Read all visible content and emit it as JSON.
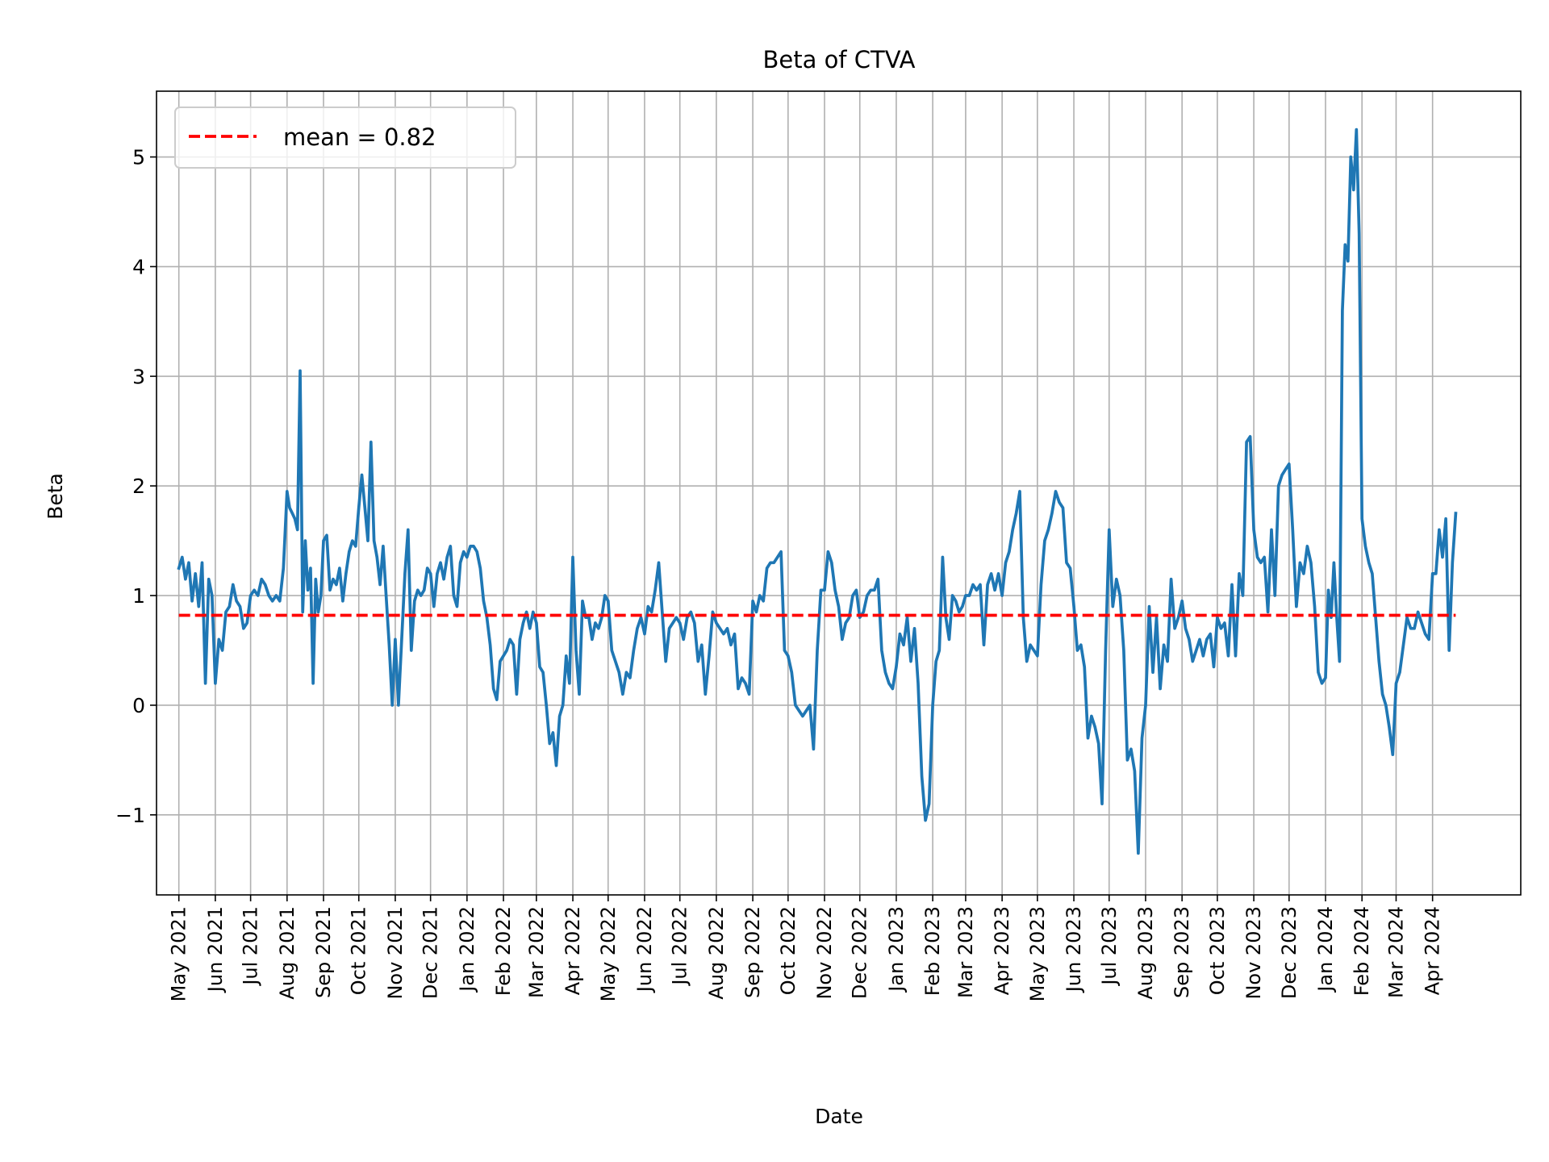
{
  "chart_data": {
    "type": "line",
    "title": "Beta of CTVA",
    "xlabel": "Date",
    "ylabel": "Beta",
    "xlim": [
      "2021-04-12",
      "2024-06-15"
    ],
    "ylim": [
      -1.73,
      5.6
    ],
    "grid": true,
    "legend_position": "top-left",
    "y_ticks": [
      "−1",
      "0",
      "1",
      "2",
      "3",
      "4",
      "5"
    ],
    "y_tick_values": [
      -1,
      0,
      1,
      2,
      3,
      4,
      5
    ],
    "x_ticks": [
      "May 2021",
      "Jun 2021",
      "Jul 2021",
      "Aug 2021",
      "Sep 2021",
      "Oct 2021",
      "Nov 2021",
      "Dec 2021",
      "Jan 2022",
      "Feb 2022",
      "Mar 2022",
      "Apr 2022",
      "May 2022",
      "Jun 2022",
      "Jul 2022",
      "Aug 2022",
      "Sep 2022",
      "Oct 2022",
      "Nov 2022",
      "Dec 2022",
      "Jan 2023",
      "Feb 2023",
      "Mar 2023",
      "Apr 2023",
      "May 2023",
      "Jun 2023",
      "Jul 2023",
      "Aug 2023",
      "Sep 2023",
      "Oct 2023",
      "Nov 2023",
      "Dec 2023",
      "Jan 2024",
      "Feb 2024",
      "Mar 2024",
      "Apr 2024"
    ],
    "x_tick_dates": [
      "2021-05-01",
      "2021-06-01",
      "2021-07-01",
      "2021-08-01",
      "2021-09-01",
      "2021-10-01",
      "2021-11-01",
      "2021-12-01",
      "2022-01-01",
      "2022-02-01",
      "2022-03-01",
      "2022-04-01",
      "2022-05-01",
      "2022-06-01",
      "2022-07-01",
      "2022-08-01",
      "2022-09-01",
      "2022-10-01",
      "2022-11-01",
      "2022-12-01",
      "2023-01-01",
      "2023-02-01",
      "2023-03-01",
      "2023-04-01",
      "2023-05-01",
      "2023-06-01",
      "2023-07-01",
      "2023-08-01",
      "2023-09-01",
      "2023-10-01",
      "2023-11-01",
      "2023-12-01",
      "2024-01-01",
      "2024-02-01",
      "2024-03-01",
      "2024-04-01"
    ],
    "series": [
      {
        "color": "#1f77b4",
        "values_by_month": {
          "2021-05": [
            1.25,
            1.35,
            1.15,
            1.3,
            0.95,
            1.2,
            0.9,
            1.3,
            0.2,
            1.15,
            1.0
          ],
          "2021-06": [
            0.2,
            0.6,
            0.5,
            0.85,
            0.9,
            1.1,
            0.95,
            0.9,
            0.7,
            0.75
          ],
          "2021-07": [
            1.0,
            1.05,
            1.0,
            1.15,
            1.1,
            1.0,
            0.95,
            1.0,
            0.95,
            1.25
          ],
          "2021-08": [
            1.95,
            1.8,
            1.75,
            1.7,
            1.6,
            3.05,
            0.85,
            1.5,
            1.05,
            1.25,
            0.2,
            1.15,
            0.85,
            1.0
          ],
          "2021-09": [
            1.5,
            1.55,
            1.05,
            1.15,
            1.1,
            1.25,
            0.95,
            1.2,
            1.4,
            1.5,
            1.45
          ],
          "2021-10": [
            1.8,
            2.1,
            1.8,
            1.5,
            2.4,
            1.5,
            1.35,
            1.1,
            1.45,
            1.0,
            0.55,
            0.0
          ],
          "2021-11": [
            0.6,
            0.0,
            0.6,
            1.2,
            1.6,
            0.5,
            0.95,
            1.05,
            1.0,
            1.05,
            1.25
          ],
          "2021-12": [
            1.2,
            0.9,
            1.2,
            1.3,
            1.15,
            1.35,
            1.45,
            1.0,
            0.9,
            1.3,
            1.4
          ],
          "2022-01": [
            1.35,
            1.45,
            1.45,
            1.4,
            1.25,
            0.95,
            0.8,
            0.55,
            0.15,
            0.05,
            0.4
          ],
          "2022-02": [
            0.45,
            0.5,
            0.6,
            0.55,
            0.1,
            0.6,
            0.75,
            0.85,
            0.7,
            0.85
          ],
          "2022-03": [
            0.75,
            0.35,
            0.3,
            0.0,
            -0.35,
            -0.25,
            -0.55,
            -0.1,
            0.0,
            0.45,
            0.2
          ],
          "2022-04": [
            1.35,
            0.5,
            0.1,
            0.95,
            0.8,
            0.8,
            0.6,
            0.75,
            0.7,
            0.8,
            1.0
          ],
          "2022-05": [
            0.95,
            0.5,
            0.4,
            0.3,
            0.1,
            0.3,
            0.25,
            0.5,
            0.7,
            0.8
          ],
          "2022-06": [
            0.65,
            0.9,
            0.85,
            1.05,
            1.3,
            0.85,
            0.4,
            0.7,
            0.75,
            0.8
          ],
          "2022-07": [
            0.75,
            0.6,
            0.8,
            0.85,
            0.75,
            0.4,
            0.55,
            0.1,
            0.45,
            0.85
          ],
          "2022-08": [
            0.75,
            0.7,
            0.65,
            0.7,
            0.55,
            0.65,
            0.15,
            0.25,
            0.2,
            0.1
          ],
          "2022-09": [
            0.95,
            0.85,
            1.0,
            0.95,
            1.25,
            1.3,
            1.3,
            1.35,
            1.4,
            0.5
          ],
          "2022-10": [
            0.45,
            0.3,
            0.0,
            -0.05,
            -0.1,
            -0.05,
            0.0,
            -0.4,
            0.5,
            1.05
          ],
          "2022-11": [
            1.05,
            1.4,
            1.3,
            1.05,
            0.9,
            0.6,
            0.75,
            0.8,
            1.0,
            1.05
          ],
          "2022-12": [
            0.8,
            0.85,
            1.0,
            1.05,
            1.05,
            1.15,
            0.5,
            0.3,
            0.2,
            0.15
          ],
          "2023-01": [
            0.35,
            0.65,
            0.55,
            0.8,
            0.4,
            0.7,
            0.2,
            -0.65,
            -1.05,
            -0.9
          ],
          "2023-02": [
            0.0,
            0.4,
            0.5,
            1.35,
            0.8,
            0.6,
            1.0,
            0.95,
            0.85,
            0.9
          ],
          "2023-03": [
            1.0,
            1.0,
            1.1,
            1.05,
            1.1,
            0.55,
            1.1,
            1.2,
            1.05,
            1.2
          ],
          "2023-04": [
            1.0,
            1.3,
            1.4,
            1.6,
            1.75,
            1.95,
            0.8,
            0.4,
            0.55,
            0.5
          ],
          "2023-05": [
            0.45,
            1.1,
            1.5,
            1.6,
            1.75,
            1.95,
            1.85,
            1.8,
            1.3,
            1.25
          ],
          "2023-06": [
            0.9,
            0.5,
            0.55,
            0.35,
            -0.3,
            -0.1,
            -0.2,
            -0.35,
            -0.9,
            0.5
          ],
          "2023-07": [
            1.6,
            0.9,
            1.15,
            1.0,
            0.5,
            -0.5,
            -0.4,
            -0.6,
            -1.35,
            -0.3
          ],
          "2023-08": [
            0.0,
            0.9,
            0.3,
            0.8,
            0.15,
            0.55,
            0.4,
            1.15,
            0.7,
            0.8
          ],
          "2023-09": [
            0.95,
            0.7,
            0.6,
            0.4,
            0.5,
            0.6,
            0.45,
            0.6,
            0.65,
            0.35
          ],
          "2023-10": [
            0.8,
            0.7,
            0.75,
            0.45,
            1.1,
            0.45,
            1.2,
            1.0,
            2.4,
            2.45
          ],
          "2023-11": [
            1.6,
            1.35,
            1.3,
            1.35,
            0.85,
            1.6,
            1.0,
            2.0,
            2.1,
            2.15
          ],
          "2023-12": [
            2.2,
            1.6,
            0.9,
            1.3,
            1.2,
            1.45,
            1.3,
            0.9,
            0.3,
            0.2
          ],
          "2024-01": [
            0.25,
            1.05,
            0.8,
            1.3,
            0.8,
            0.4,
            3.6,
            4.2,
            4.05,
            5.0,
            4.7,
            5.25,
            4.3
          ],
          "2024-02": [
            1.7,
            1.45,
            1.3,
            1.2,
            0.8,
            0.4,
            0.1,
            0.0,
            -0.2,
            -0.45
          ],
          "2024-03": [
            0.2,
            0.3,
            0.55,
            0.8,
            0.7,
            0.7,
            0.85,
            0.75,
            0.65,
            0.6
          ],
          "2024-04": [
            1.2,
            1.2,
            1.6,
            1.35,
            1.7,
            0.5,
            1.3,
            1.75
          ]
        }
      }
    ],
    "mean_line": {
      "value": 0.82,
      "label": "mean = 0.82",
      "color": "#ff0000",
      "style": "dashed"
    }
  }
}
